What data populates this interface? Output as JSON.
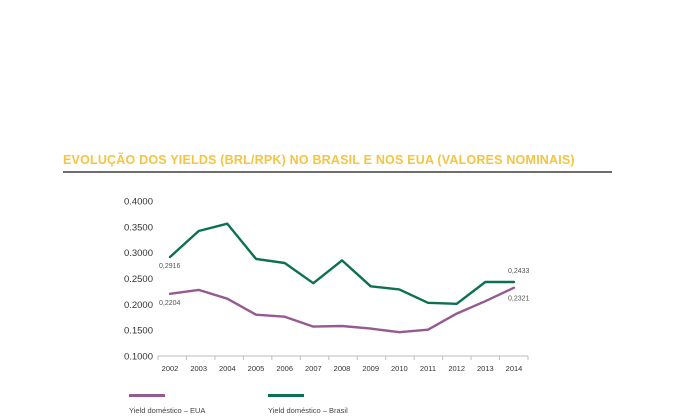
{
  "chart_data": {
    "type": "line",
    "title": "EVOLUÇÃO DOS YIELDS (BRL/RPK) NO BRASIL E NOS EUA (VALORES NOMINAIS)",
    "x": [
      "2002",
      "2003",
      "2004",
      "2005",
      "2006",
      "2007",
      "2008",
      "2009",
      "2010",
      "2011",
      "2012",
      "2013",
      "2014"
    ],
    "yticks": [
      "0.1000",
      "0.1500",
      "0.2000",
      "0.2500",
      "0.3000",
      "0.3500",
      "0.4000"
    ],
    "ylim": [
      0.1,
      0.4
    ],
    "grid": false,
    "legend_position": "bottom",
    "series": [
      {
        "name": "Yield doméstico – EUA",
        "color": "#955a90",
        "values": [
          0.2204,
          0.228,
          0.211,
          0.18,
          0.176,
          0.157,
          0.158,
          0.153,
          0.146,
          0.151,
          0.182,
          0.206,
          0.2321
        ],
        "start_label": "0,2204",
        "end_label": "0,2321"
      },
      {
        "name": "Yield doméstico – Brasil",
        "color": "#0c7052",
        "values": [
          0.2916,
          0.342,
          0.356,
          0.288,
          0.28,
          0.241,
          0.285,
          0.235,
          0.229,
          0.203,
          0.201,
          0.2433,
          0.2433
        ],
        "start_label": "0,2916",
        "end_label": "0,2433"
      }
    ]
  }
}
